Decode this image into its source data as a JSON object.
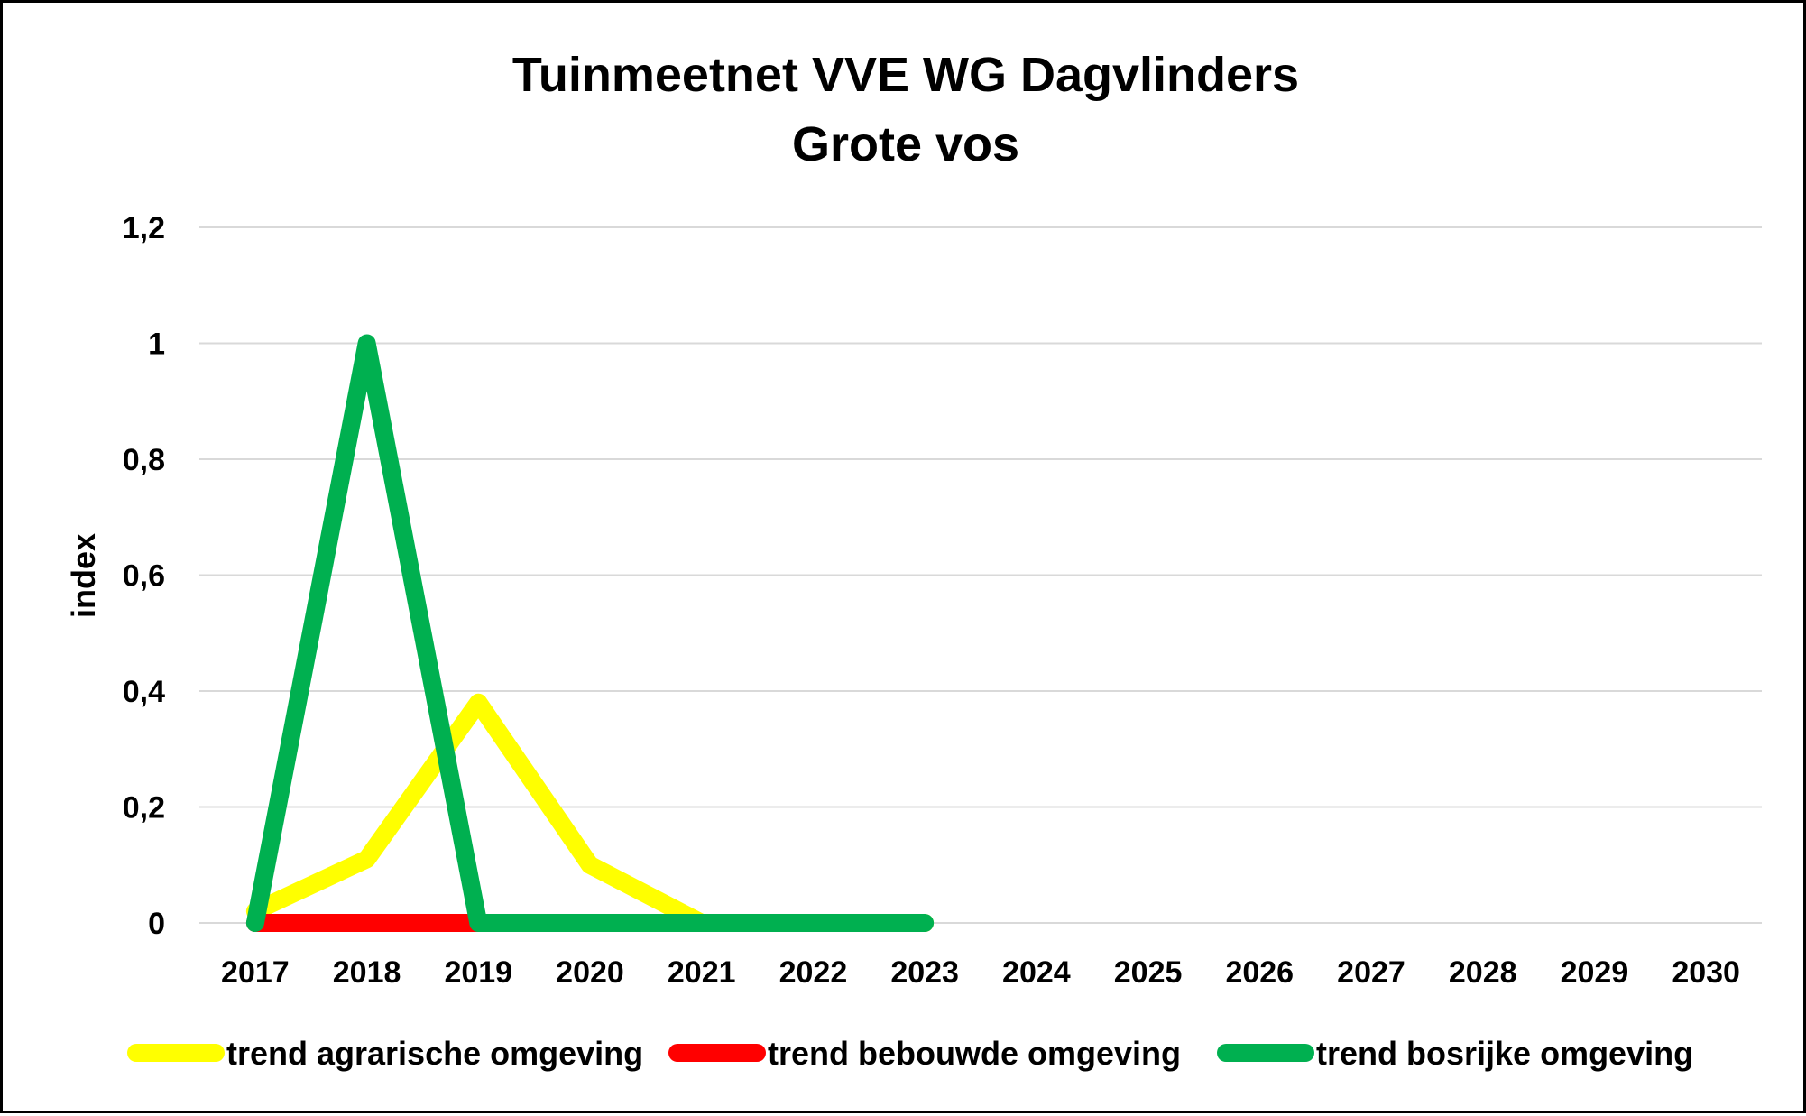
{
  "chart_data": {
    "type": "line",
    "title": "Tuinmeetnet VVE WG Dagvlinders",
    "subtitle": "Grote vos",
    "xlabel": "",
    "ylabel": "index",
    "ylim": [
      0,
      1.2
    ],
    "yticks": [
      0,
      0.2,
      0.4,
      0.6,
      0.8,
      1,
      1.2
    ],
    "ytick_labels": [
      "0",
      "0,2",
      "0,4",
      "0,6",
      "0,8",
      "1",
      "1,2"
    ],
    "categories": [
      "2017",
      "2018",
      "2019",
      "2020",
      "2021",
      "2022",
      "2023",
      "2024",
      "2025",
      "2026",
      "2027",
      "2028",
      "2029",
      "2030"
    ],
    "grid": true,
    "legend_position": "bottom",
    "series": [
      {
        "name": "trend agrarische omgeving",
        "color": "#ffff00",
        "values": [
          0.02,
          0.11,
          0.38,
          0.1,
          0.0,
          0.0,
          0.0,
          null,
          null,
          null,
          null,
          null,
          null,
          null
        ]
      },
      {
        "name": "trend bebouwde omgeving",
        "color": "#ff0000",
        "values": [
          0,
          0,
          0,
          null,
          null,
          null,
          null,
          null,
          null,
          null,
          null,
          null,
          null,
          null
        ]
      },
      {
        "name": "trend bosrijke omgeving",
        "color": "#00b050",
        "values": [
          0,
          1.0,
          0,
          0,
          0,
          0,
          0,
          null,
          null,
          null,
          null,
          null,
          null,
          null
        ]
      }
    ]
  }
}
